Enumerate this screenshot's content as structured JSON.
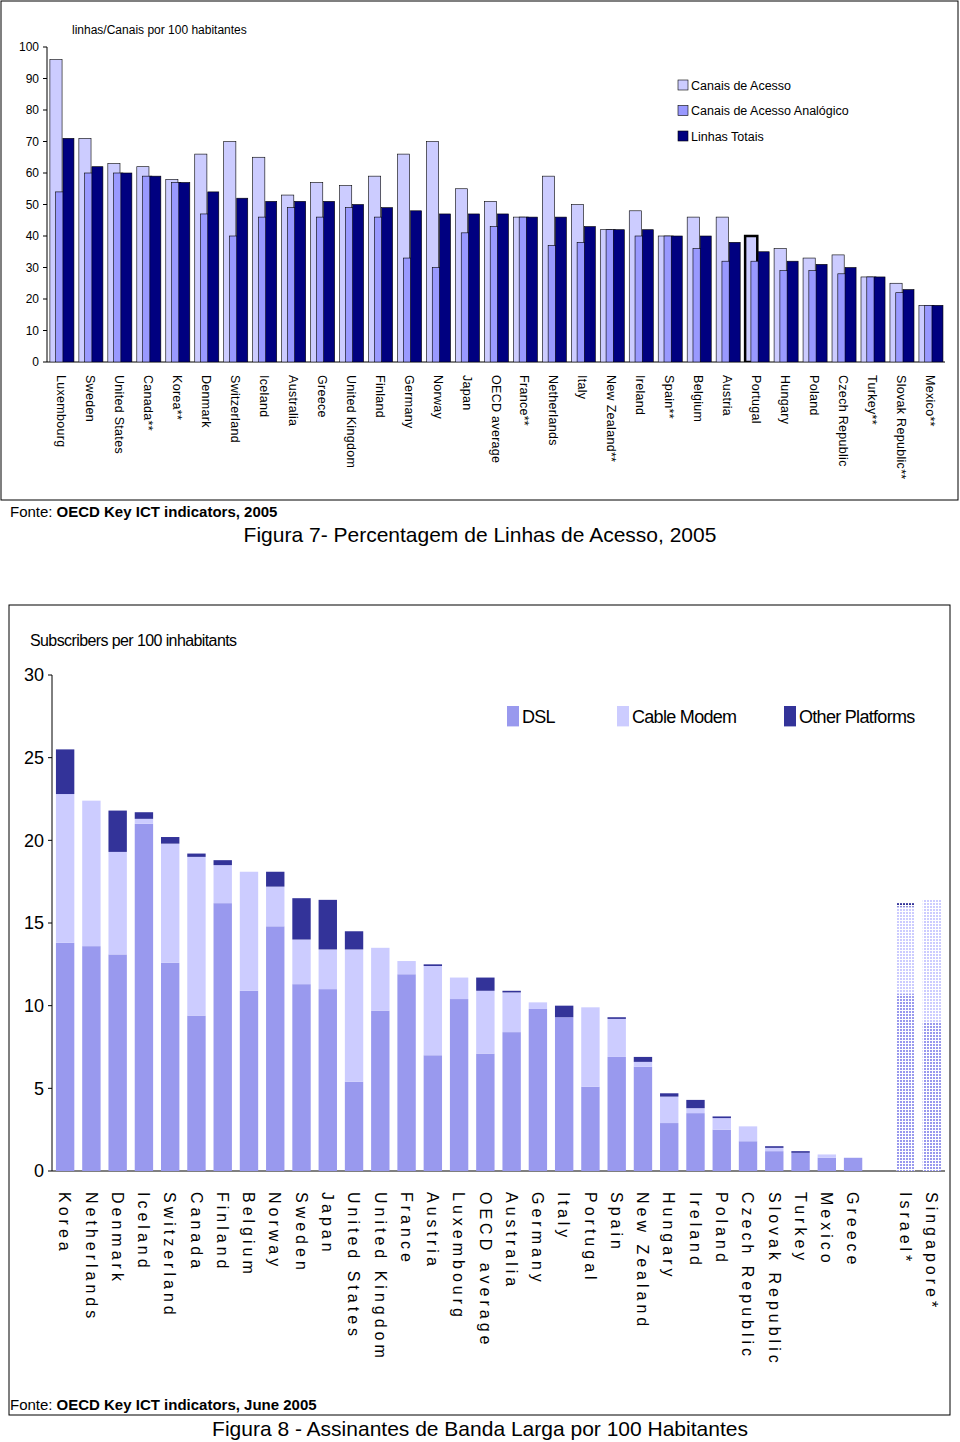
{
  "chart_data": [
    {
      "type": "bar",
      "y_label": "linhas/Canais por 100 habitantes",
      "source_label": "Fonte:",
      "source": "OECD Key ICT indicators, 2005",
      "caption": "Figura 7- Percentagem de Linhas de Acesso, 2005",
      "categories": [
        "Luxembourg",
        "Sweden",
        "United States",
        "Canada**",
        "Korea**",
        "Denmark",
        "Switzerland",
        "Iceland",
        "Australia",
        "Greece",
        "United Kingdom",
        "Finland",
        "Germany",
        "Norway",
        "Japan",
        "OECD average",
        "France**",
        "Netherlands",
        "Italy",
        "New Zealand**",
        "Ireland",
        "Spain**",
        "Belgium",
        "Austria",
        "Portugal",
        "Hungary",
        "Poland",
        "Czech Republic",
        "Turkey**",
        "Slovak Republic**",
        "Mexico**"
      ],
      "series": [
        {
          "name": "Canais de Acesso",
          "color": "#ccccff",
          "values": [
            96,
            71,
            63,
            62,
            58,
            66,
            70,
            65,
            53,
            57,
            56,
            59,
            66,
            70,
            55,
            51,
            46,
            59,
            50,
            42,
            48,
            40,
            46,
            46,
            40,
            36,
            33,
            34,
            27,
            25,
            18
          ]
        },
        {
          "name": "Canais de Acesso Analógico",
          "color": "#9999ff",
          "values": [
            54,
            60,
            60,
            59,
            57,
            47,
            40,
            46,
            49,
            46,
            49,
            46,
            33,
            30,
            41,
            43,
            46,
            37,
            38,
            42,
            40,
            40,
            36,
            32,
            32,
            29,
            29,
            28,
            27,
            22,
            18
          ]
        },
        {
          "name": "Linhas Totais",
          "color": "#000080",
          "values": [
            71,
            62,
            60,
            59,
            57,
            54,
            52,
            51,
            51,
            51,
            50,
            49,
            48,
            47,
            47,
            47,
            46,
            46,
            43,
            42,
            42,
            40,
            40,
            38,
            35,
            32,
            31,
            30,
            27,
            23,
            18
          ]
        }
      ],
      "ylim": [
        0,
        100
      ],
      "yticks": [
        0,
        10,
        20,
        30,
        40,
        50,
        60,
        70,
        80,
        90,
        100
      ],
      "grid": false,
      "legend": "top-right"
    },
    {
      "type": "bar",
      "stacked": true,
      "y_label": "Subscribers per 100 inhabitants",
      "source_label": "Fonte:",
      "source": "OECD Key ICT indicators, June 2005",
      "caption": "Figura 8 - Assinantes de Banda Larga por 100 Habitantes",
      "categories": [
        "Korea",
        "Netherlands",
        "Denmark",
        "Iceland",
        "Switzerland",
        "Canada",
        "Finland",
        "Belgium",
        "Norway",
        "Sweden",
        "Japan",
        "United States",
        "United Kingdom",
        "France",
        "Austria",
        "Luxembourg",
        "OECD average",
        "Australia",
        "Germany",
        "Italy",
        "Portugal",
        "Spain",
        "New Zealand",
        "Hungary",
        "Ireland",
        "Poland",
        "Czech Republic",
        "Slovak Republic",
        "Turkey",
        "Mexico",
        "Greece",
        null,
        "Israel*",
        "Singapore*"
      ],
      "series": [
        {
          "name": "DSL",
          "color": "#9999ee",
          "values": [
            13.8,
            13.6,
            13.1,
            21.0,
            12.6,
            9.4,
            16.2,
            10.9,
            14.8,
            11.3,
            11.0,
            5.4,
            9.7,
            11.9,
            7.0,
            10.4,
            7.1,
            8.4,
            9.8,
            9.3,
            5.1,
            6.9,
            6.3,
            2.9,
            3.5,
            2.5,
            1.8,
            1.2,
            1.1,
            0.8,
            0.8,
            null,
            10.7,
            9.0
          ]
        },
        {
          "name": "Cable Modem",
          "color": "#ccccff",
          "values": [
            9.0,
            8.8,
            6.2,
            0.3,
            7.2,
            9.6,
            2.3,
            7.2,
            2.4,
            2.7,
            2.4,
            8.0,
            3.8,
            0.8,
            5.4,
            1.3,
            3.8,
            2.4,
            0.4,
            0,
            4.8,
            2.3,
            0.3,
            1.6,
            0.3,
            0.7,
            0.9,
            0.2,
            0,
            0.2,
            0,
            null,
            5.3,
            7.4
          ]
        },
        {
          "name": "Other Platforms",
          "color": "#333399",
          "values": [
            2.7,
            0,
            2.5,
            0.4,
            0.4,
            0.2,
            0.3,
            0,
            0.9,
            2.5,
            3.0,
            1.1,
            0,
            0,
            0.1,
            0,
            0.8,
            0.1,
            0,
            0.7,
            0,
            0.1,
            0.3,
            0.2,
            0.5,
            0.1,
            0,
            0.1,
            0.1,
            0,
            0,
            null,
            0.2,
            0
          ]
        }
      ],
      "ylim": [
        0,
        30
      ],
      "yticks": [
        0,
        5,
        10,
        15,
        20,
        25,
        30
      ],
      "grid": false,
      "legend": "top-right"
    }
  ]
}
